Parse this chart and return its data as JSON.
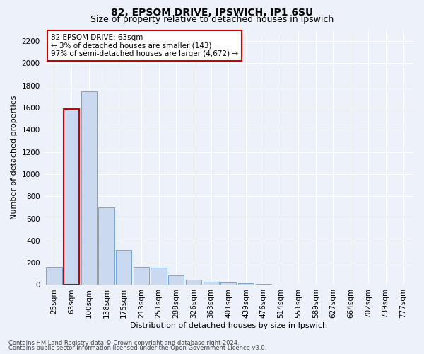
{
  "title": "82, EPSOM DRIVE, IPSWICH, IP1 6SU",
  "subtitle": "Size of property relative to detached houses in Ipswich",
  "xlabel": "Distribution of detached houses by size in Ipswich",
  "ylabel": "Number of detached properties",
  "categories": [
    "25sqm",
    "63sqm",
    "100sqm",
    "138sqm",
    "175sqm",
    "213sqm",
    "251sqm",
    "288sqm",
    "326sqm",
    "363sqm",
    "401sqm",
    "439sqm",
    "476sqm",
    "514sqm",
    "551sqm",
    "589sqm",
    "627sqm",
    "664sqm",
    "702sqm",
    "739sqm",
    "777sqm"
  ],
  "values": [
    160,
    1590,
    1750,
    700,
    315,
    160,
    155,
    85,
    45,
    30,
    20,
    15,
    10,
    0,
    0,
    0,
    0,
    0,
    0,
    0,
    0
  ],
  "bar_color": "#cad9ef",
  "bar_edge_color": "#6699cc",
  "highlight_index": 1,
  "highlight_edge_color": "#cc0000",
  "annotation_text": "82 EPSOM DRIVE: 63sqm\n← 3% of detached houses are smaller (143)\n97% of semi-detached houses are larger (4,672) →",
  "annotation_box_edge": "#cc0000",
  "ylim": [
    0,
    2300
  ],
  "yticks": [
    0,
    200,
    400,
    600,
    800,
    1000,
    1200,
    1400,
    1600,
    1800,
    2000,
    2200
  ],
  "footer_line1": "Contains HM Land Registry data © Crown copyright and database right 2024.",
  "footer_line2": "Contains public sector information licensed under the Open Government Licence v3.0.",
  "background_color": "#edf1f9",
  "grid_color": "#ffffff",
  "title_fontsize": 10,
  "subtitle_fontsize": 9,
  "axis_label_fontsize": 8,
  "tick_fontsize": 7.5,
  "annotation_fontsize": 7.5,
  "footer_fontsize": 6.0
}
